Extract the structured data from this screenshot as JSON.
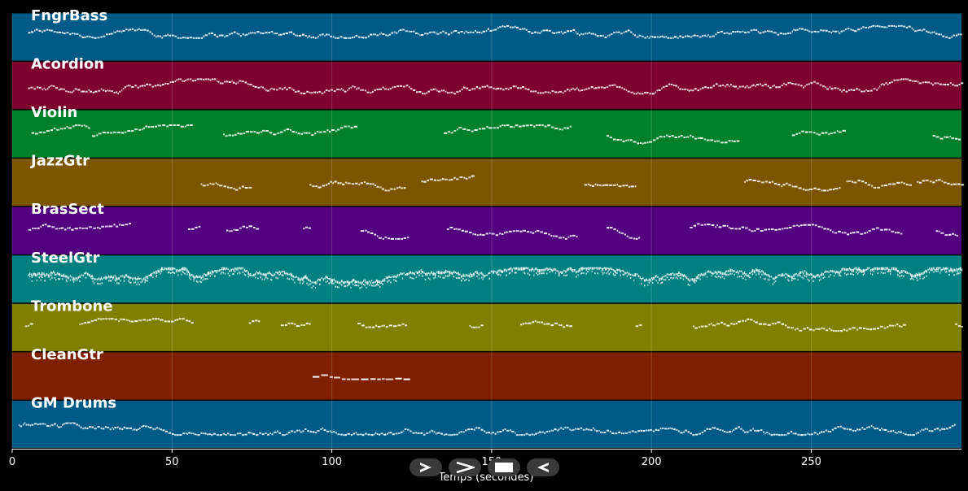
{
  "chart_data": {
    "type": "piano-roll",
    "xlabel": "Temps (secondes)",
    "xlim": [
      0,
      297
    ],
    "xticks": [
      0,
      50,
      100,
      150,
      200,
      250
    ],
    "grid": true,
    "tracks": [
      {
        "name": "FngrBass",
        "color": "#005a87",
        "segments": [
          [
            5,
            297
          ]
        ],
        "pitch_range": [
          0.5,
          0.75
        ],
        "density": "high"
      },
      {
        "name": "Acordion",
        "color": "#7e002f",
        "segments": [
          [
            5,
            297
          ]
        ],
        "pitch_range": [
          0.35,
          0.65
        ],
        "density": "high"
      },
      {
        "name": "Violin",
        "color": "#00802a",
        "segments": [
          [
            6,
            24
          ],
          [
            25,
            56
          ],
          [
            66,
            108
          ],
          [
            135,
            175
          ],
          [
            186,
            227
          ],
          [
            244,
            261
          ],
          [
            288,
            296
          ]
        ],
        "pitch_range": [
          0.3,
          0.7
        ],
        "density": "medium"
      },
      {
        "name": "JazzGtr",
        "color": "#7b5500",
        "segments": [
          [
            59,
            75
          ],
          [
            93,
            123
          ],
          [
            128,
            144
          ],
          [
            179,
            195
          ],
          [
            229,
            259
          ],
          [
            261,
            281
          ],
          [
            283,
            297
          ]
        ],
        "pitch_range": [
          0.35,
          0.65
        ],
        "density": "medium"
      },
      {
        "name": "BrasSect",
        "color": "#520080",
        "segments": [
          [
            5,
            37
          ],
          [
            55,
            59
          ],
          [
            67,
            77
          ],
          [
            91,
            93
          ],
          [
            109,
            124
          ],
          [
            136,
            177
          ],
          [
            186,
            196
          ],
          [
            212,
            278
          ],
          [
            289,
            296
          ]
        ],
        "pitch_range": [
          0.35,
          0.75
        ],
        "density": "medium"
      },
      {
        "name": "SteelGtr",
        "color": "#008080",
        "segments": [
          [
            5,
            297
          ]
        ],
        "pitch_range": [
          0.45,
          0.75
        ],
        "density": "very-high"
      },
      {
        "name": "Trombone",
        "color": "#7f7f00",
        "segments": [
          [
            4,
            6
          ],
          [
            21,
            56
          ],
          [
            74,
            77
          ],
          [
            84,
            93
          ],
          [
            108,
            123
          ],
          [
            143,
            147
          ],
          [
            159,
            175
          ],
          [
            195,
            197
          ],
          [
            213,
            279
          ],
          [
            295,
            297
          ]
        ],
        "pitch_range": [
          0.45,
          0.7
        ],
        "density": "medium"
      },
      {
        "name": "CleanGtr",
        "color": "#7e2000",
        "segments": [
          [
            94,
            124
          ]
        ],
        "pitch_range": [
          0.45,
          0.55
        ],
        "density": "low"
      },
      {
        "name": "GM Drums",
        "color": "#005a87",
        "segments": [
          [
            2,
            295
          ]
        ],
        "pitch_range": [
          0.3,
          0.65
        ],
        "density": "high"
      }
    ]
  },
  "controls": [
    {
      "name": "play-button",
      "icon": "play-outline-icon"
    },
    {
      "name": "forward-button",
      "icon": "chevron-right-icon"
    },
    {
      "name": "stop-button",
      "icon": "stop-icon"
    },
    {
      "name": "back-button",
      "icon": "rewind-icon"
    }
  ]
}
